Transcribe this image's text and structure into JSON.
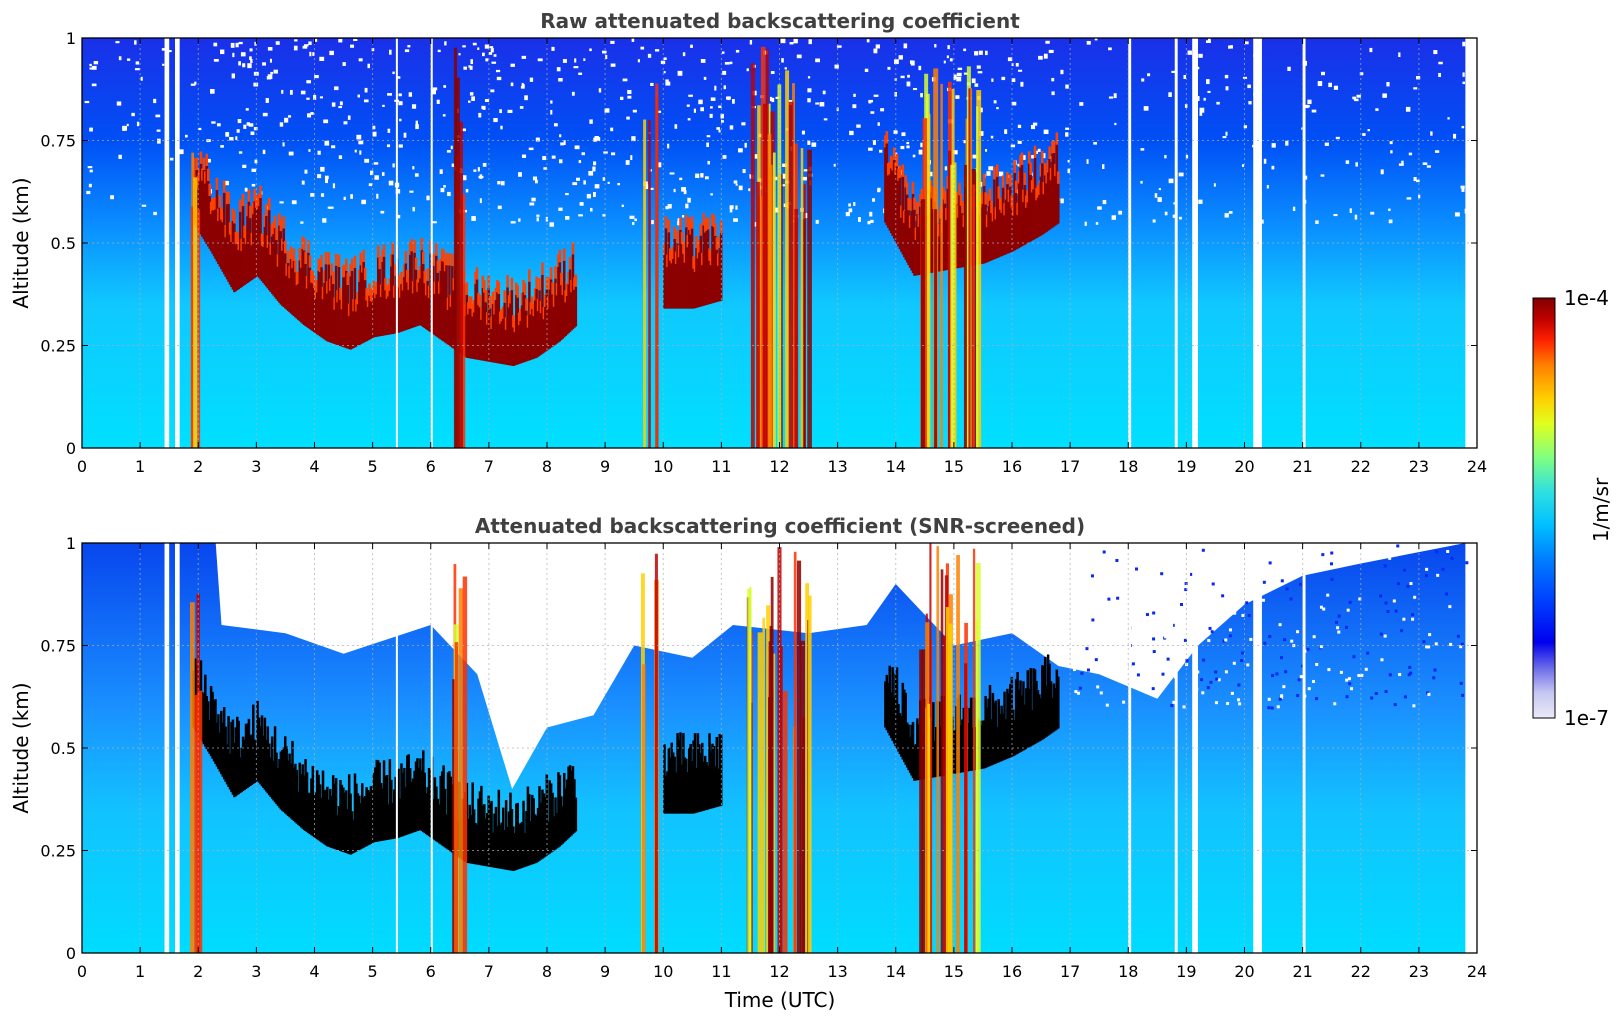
{
  "chart_data": [
    {
      "type": "heatmap",
      "title": "Raw attenuated backscattering coefficient",
      "xlabel": "",
      "ylabel": "Altitude (km)",
      "xlim": [
        0,
        24
      ],
      "ylim": [
        0,
        1
      ],
      "x_ticks": [
        "0",
        "1",
        "2",
        "3",
        "4",
        "5",
        "6",
        "7",
        "8",
        "9",
        "10",
        "11",
        "12",
        "13",
        "14",
        "15",
        "16",
        "17",
        "18",
        "19",
        "20",
        "21",
        "22",
        "23",
        "24"
      ],
      "y_ticks": [
        "0",
        "0.25",
        "0.5",
        "0.75",
        "1"
      ],
      "grid": true,
      "cloud_base_km": [
        [
          1.9,
          0.55
        ],
        [
          2.2,
          0.48
        ],
        [
          2.6,
          0.38
        ],
        [
          3.0,
          0.42
        ],
        [
          3.4,
          0.35
        ],
        [
          3.8,
          0.3
        ],
        [
          4.2,
          0.26
        ],
        [
          4.6,
          0.24
        ],
        [
          5.0,
          0.27
        ],
        [
          5.4,
          0.28
        ],
        [
          5.8,
          0.3
        ],
        [
          6.2,
          0.26
        ],
        [
          6.6,
          0.22
        ],
        [
          7.0,
          0.21
        ],
        [
          7.4,
          0.2
        ],
        [
          7.8,
          0.22
        ],
        [
          8.2,
          0.26
        ],
        [
          8.5,
          0.3
        ],
        [
          10.0,
          0.34
        ],
        [
          10.5,
          0.34
        ],
        [
          11.0,
          0.36
        ],
        [
          13.8,
          0.55
        ],
        [
          14.3,
          0.42
        ],
        [
          15.5,
          0.45
        ],
        [
          16.0,
          0.48
        ],
        [
          16.5,
          0.52
        ],
        [
          16.8,
          0.55
        ]
      ]
    },
    {
      "type": "heatmap",
      "title": "Attenuated backscattering coefficient (SNR-screened)",
      "xlabel": "Time (UTC)",
      "ylabel": "Altitude (km)",
      "xlim": [
        0,
        24
      ],
      "ylim": [
        0,
        1
      ],
      "x_ticks": [
        "0",
        "1",
        "2",
        "3",
        "4",
        "5",
        "6",
        "7",
        "8",
        "9",
        "10",
        "11",
        "12",
        "13",
        "14",
        "15",
        "16",
        "17",
        "18",
        "19",
        "20",
        "21",
        "22",
        "23",
        "24"
      ],
      "y_ticks": [
        "0",
        "0.25",
        "0.5",
        "0.75",
        "1"
      ],
      "grid": true
    }
  ],
  "colorbar": {
    "label": "1/m/sr",
    "max_label": "1e-4",
    "min_label": "1e-7",
    "scale": "log",
    "range": [
      1e-07,
      0.0001
    ],
    "colormap": [
      "#eaeaf8",
      "#c6c6f2",
      "#6a6ae8",
      "#0000ee",
      "#0040ff",
      "#0080ff",
      "#00c0ff",
      "#30e0e0",
      "#80ff80",
      "#e0ff20",
      "#ffd000",
      "#ff8000",
      "#ff2000",
      "#c00000",
      "#800000"
    ]
  },
  "colors": {
    "low": "#0a3cf0",
    "mid": "#1ab8f5",
    "cloud": "#8b0000",
    "screened_cloud": "#000000",
    "missing": "#ffffff"
  }
}
